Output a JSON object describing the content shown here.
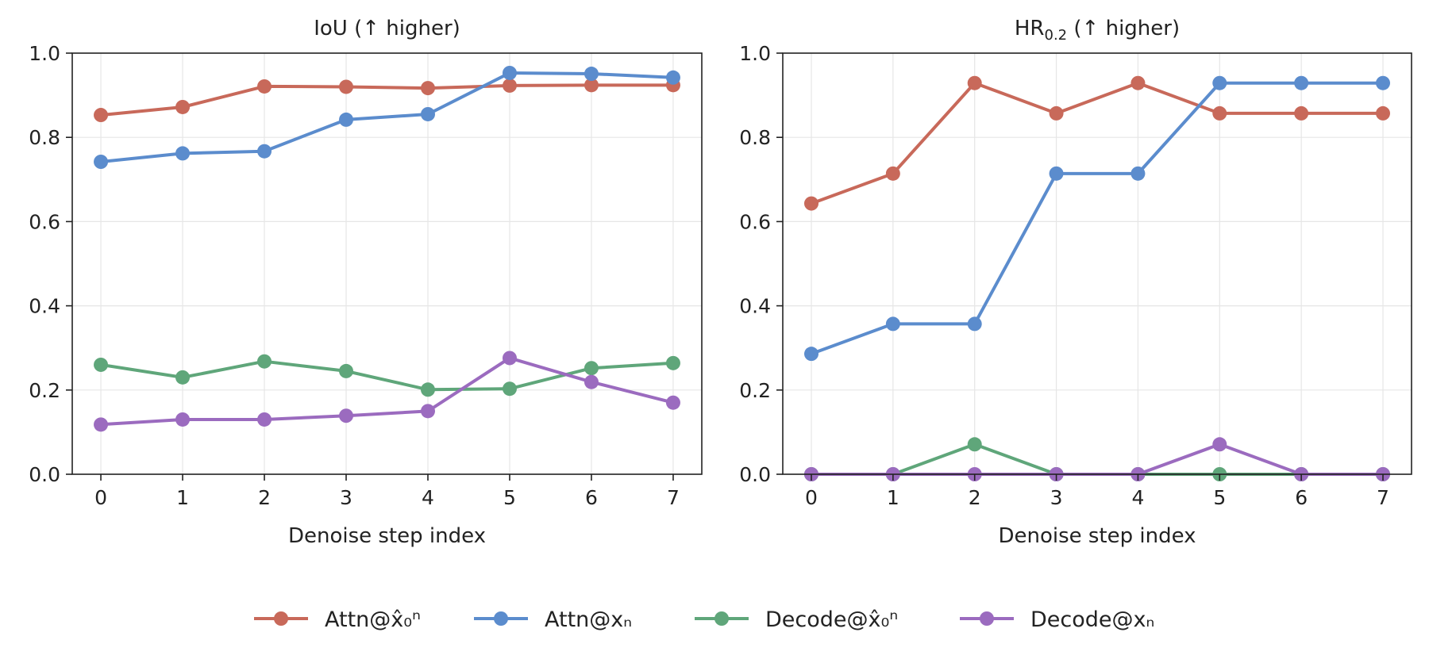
{
  "chart_data": [
    {
      "type": "line",
      "title": "IoU (↑ higher)",
      "title_parts": [
        {
          "text": "IoU (↑ higher)",
          "sub": ""
        }
      ],
      "xlabel": "Denoise step index",
      "ylabel": "",
      "x": [
        0,
        1,
        2,
        3,
        4,
        5,
        6,
        7
      ],
      "xlim": [
        -0.35,
        7.35
      ],
      "ylim": [
        0,
        1.0
      ],
      "yticks": [
        "0.0",
        "0.2",
        "0.4",
        "0.6",
        "0.8",
        "1.0"
      ],
      "grid": true,
      "series": [
        {
          "key": "s1",
          "color": "#c8695a",
          "values": [
            0.853,
            0.872,
            0.921,
            0.92,
            0.917,
            0.923,
            0.924,
            0.924
          ]
        },
        {
          "key": "s2",
          "color": "#5b8ccd",
          "values": [
            0.742,
            0.762,
            0.767,
            0.842,
            0.855,
            0.953,
            0.951,
            0.942
          ]
        },
        {
          "key": "s3",
          "color": "#5fa67a",
          "values": [
            0.26,
            0.23,
            0.268,
            0.245,
            0.201,
            0.203,
            0.252,
            0.264
          ]
        },
        {
          "key": "s4",
          "color": "#9b6bbf",
          "values": [
            0.118,
            0.13,
            0.13,
            0.139,
            0.15,
            0.276,
            0.219,
            0.17
          ]
        }
      ]
    },
    {
      "type": "line",
      "title": "HR0.2 (↑ higher)",
      "title_parts": [
        {
          "text": "HR",
          "sub": ""
        },
        {
          "text": "0.2",
          "sub": "true"
        },
        {
          "text": " (↑ higher)",
          "sub": ""
        }
      ],
      "xlabel": "Denoise step index",
      "ylabel": "",
      "x": [
        0,
        1,
        2,
        3,
        4,
        5,
        6,
        7
      ],
      "xlim": [
        -0.35,
        7.35
      ],
      "ylim": [
        0,
        1.0
      ],
      "yticks": [
        "0.0",
        "0.2",
        "0.4",
        "0.6",
        "0.8",
        "1.0"
      ],
      "grid": true,
      "series": [
        {
          "key": "s1",
          "color": "#c8695a",
          "values": [
            0.643,
            0.714,
            0.929,
            0.857,
            0.929,
            0.857,
            0.857,
            0.857
          ]
        },
        {
          "key": "s2",
          "color": "#5b8ccd",
          "values": [
            0.286,
            0.357,
            0.357,
            0.714,
            0.714,
            0.929,
            0.929,
            0.929
          ]
        },
        {
          "key": "s3",
          "color": "#5fa67a",
          "values": [
            0.0,
            0.0,
            0.071,
            0.0,
            0.0,
            0.0,
            0.0,
            0.0
          ]
        },
        {
          "key": "s4",
          "color": "#9b6bbf",
          "values": [
            0.0,
            0.0,
            0.0,
            0.0,
            0.0,
            0.071,
            0.0,
            0.0
          ]
        }
      ]
    }
  ],
  "legend": {
    "placement": "bottom-center",
    "items": [
      {
        "key": "s1",
        "label": "Attn@x̂₀ⁿ",
        "color": "#c8695a"
      },
      {
        "key": "s2",
        "label": "Attn@xₙ",
        "color": "#5b8ccd"
      },
      {
        "key": "s3",
        "label": "Decode@x̂₀ⁿ",
        "color": "#5fa67a"
      },
      {
        "key": "s4",
        "label": "Decode@xₙ",
        "color": "#9b6bbf"
      }
    ]
  }
}
